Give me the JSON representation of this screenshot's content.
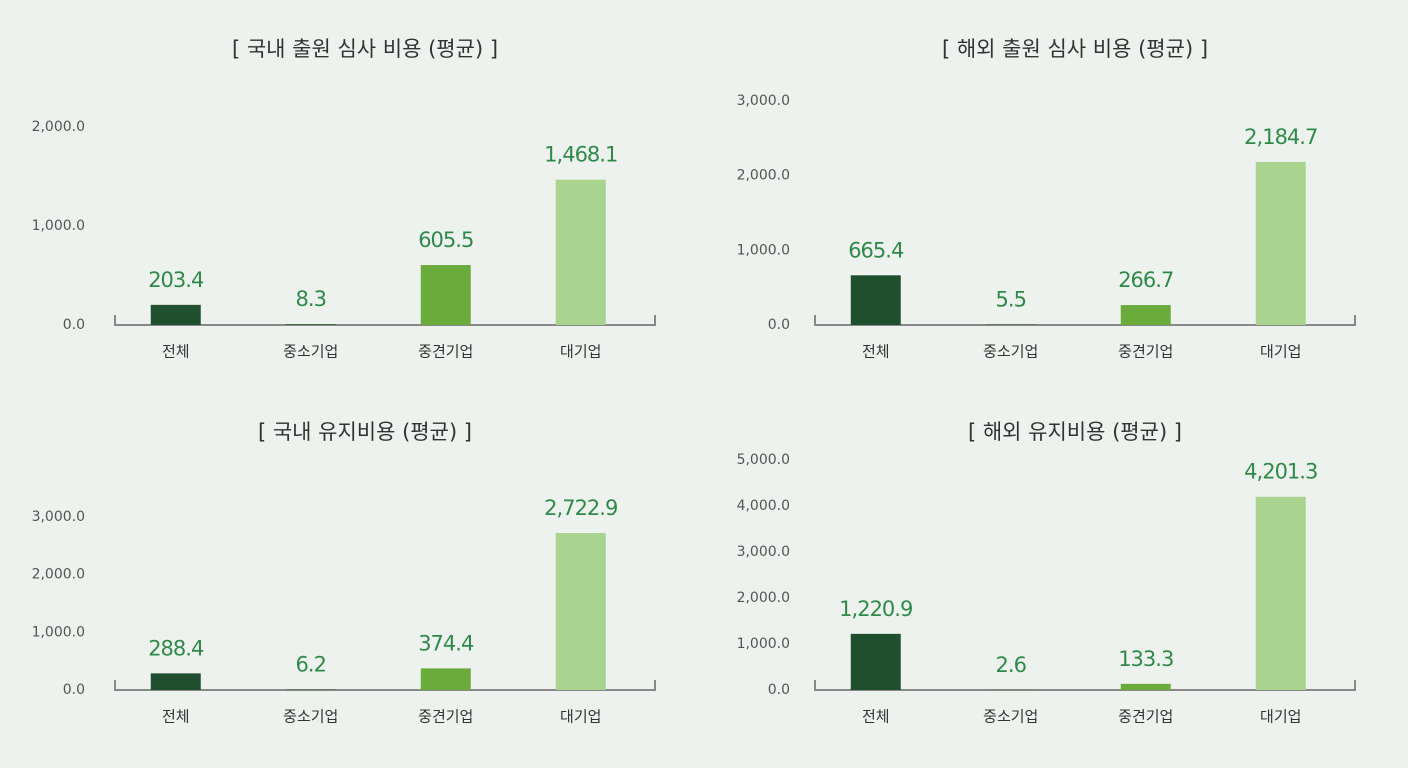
{
  "chart_data": [
    {
      "type": "bar",
      "title": "[ 국내 출원 심사 비용 (평균) ]",
      "categories": [
        "전체",
        "중소기업",
        "중견기업",
        "대기업"
      ],
      "values": [
        203.4,
        8.3,
        605.5,
        1468.1
      ],
      "value_labels": [
        "203.4",
        "8.3",
        "605.5",
        "1,468.1"
      ],
      "colors": [
        "#1f4f2e",
        "#2f6a3a",
        "#6aab3c",
        "#a9d38e"
      ],
      "ylim": [
        0,
        2000
      ],
      "yticks": [
        {
          "value": 0,
          "label": "0.0"
        },
        {
          "value": 1000,
          "label": "1,000.0"
        },
        {
          "value": 2000,
          "label": "2,000.0"
        }
      ]
    },
    {
      "type": "bar",
      "title": "[ 해외 출원 심사 비용 (평균) ]",
      "categories": [
        "전체",
        "중소기업",
        "중견기업",
        "대기업"
      ],
      "values": [
        665.4,
        5.5,
        266.7,
        2184.7
      ],
      "value_labels": [
        "665.4",
        "5.5",
        "266.7",
        "2,184.7"
      ],
      "colors": [
        "#1f4f2e",
        "#2f6a3a",
        "#6aab3c",
        "#a9d38e"
      ],
      "ylim": [
        0,
        3000
      ],
      "yticks": [
        {
          "value": 0,
          "label": "0.0"
        },
        {
          "value": 1000,
          "label": "1,000.0"
        },
        {
          "value": 2000,
          "label": "2,000.0"
        },
        {
          "value": 3000,
          "label": "3,000.0"
        }
      ]
    },
    {
      "type": "bar",
      "title": "[ 국내 유지비용 (평균) ]",
      "categories": [
        "전체",
        "중소기업",
        "중견기업",
        "대기업"
      ],
      "values": [
        288.4,
        6.2,
        374.4,
        2722.9
      ],
      "value_labels": [
        "288.4",
        "6.2",
        "374.4",
        "2,722.9"
      ],
      "colors": [
        "#1f4f2e",
        "#2f6a3a",
        "#6aab3c",
        "#a9d38e"
      ],
      "ylim": [
        0,
        3000
      ],
      "yticks": [
        {
          "value": 0,
          "label": "0.0"
        },
        {
          "value": 1000,
          "label": "1,000.0"
        },
        {
          "value": 2000,
          "label": "2,000.0"
        },
        {
          "value": 3000,
          "label": "3,000.0"
        }
      ]
    },
    {
      "type": "bar",
      "title": "[ 해외 유지비용 (평균) ]",
      "categories": [
        "전체",
        "중소기업",
        "중견기업",
        "대기업"
      ],
      "values": [
        1220.9,
        2.6,
        133.3,
        4201.3
      ],
      "value_labels": [
        "1,220.9",
        "2.6",
        "133.3",
        "4,201.3"
      ],
      "colors": [
        "#1f4f2e",
        "#2f6a3a",
        "#6aab3c",
        "#a9d38e"
      ],
      "ylim": [
        0,
        5000
      ],
      "yticks": [
        {
          "value": 0,
          "label": "0.0"
        },
        {
          "value": 1000,
          "label": "1,000.0"
        },
        {
          "value": 2000,
          "label": "2,000.0"
        },
        {
          "value": 3000,
          "label": "3,000.0"
        },
        {
          "value": 4000,
          "label": "4,000.0"
        },
        {
          "value": 5000,
          "label": "5,000.0"
        }
      ]
    }
  ]
}
